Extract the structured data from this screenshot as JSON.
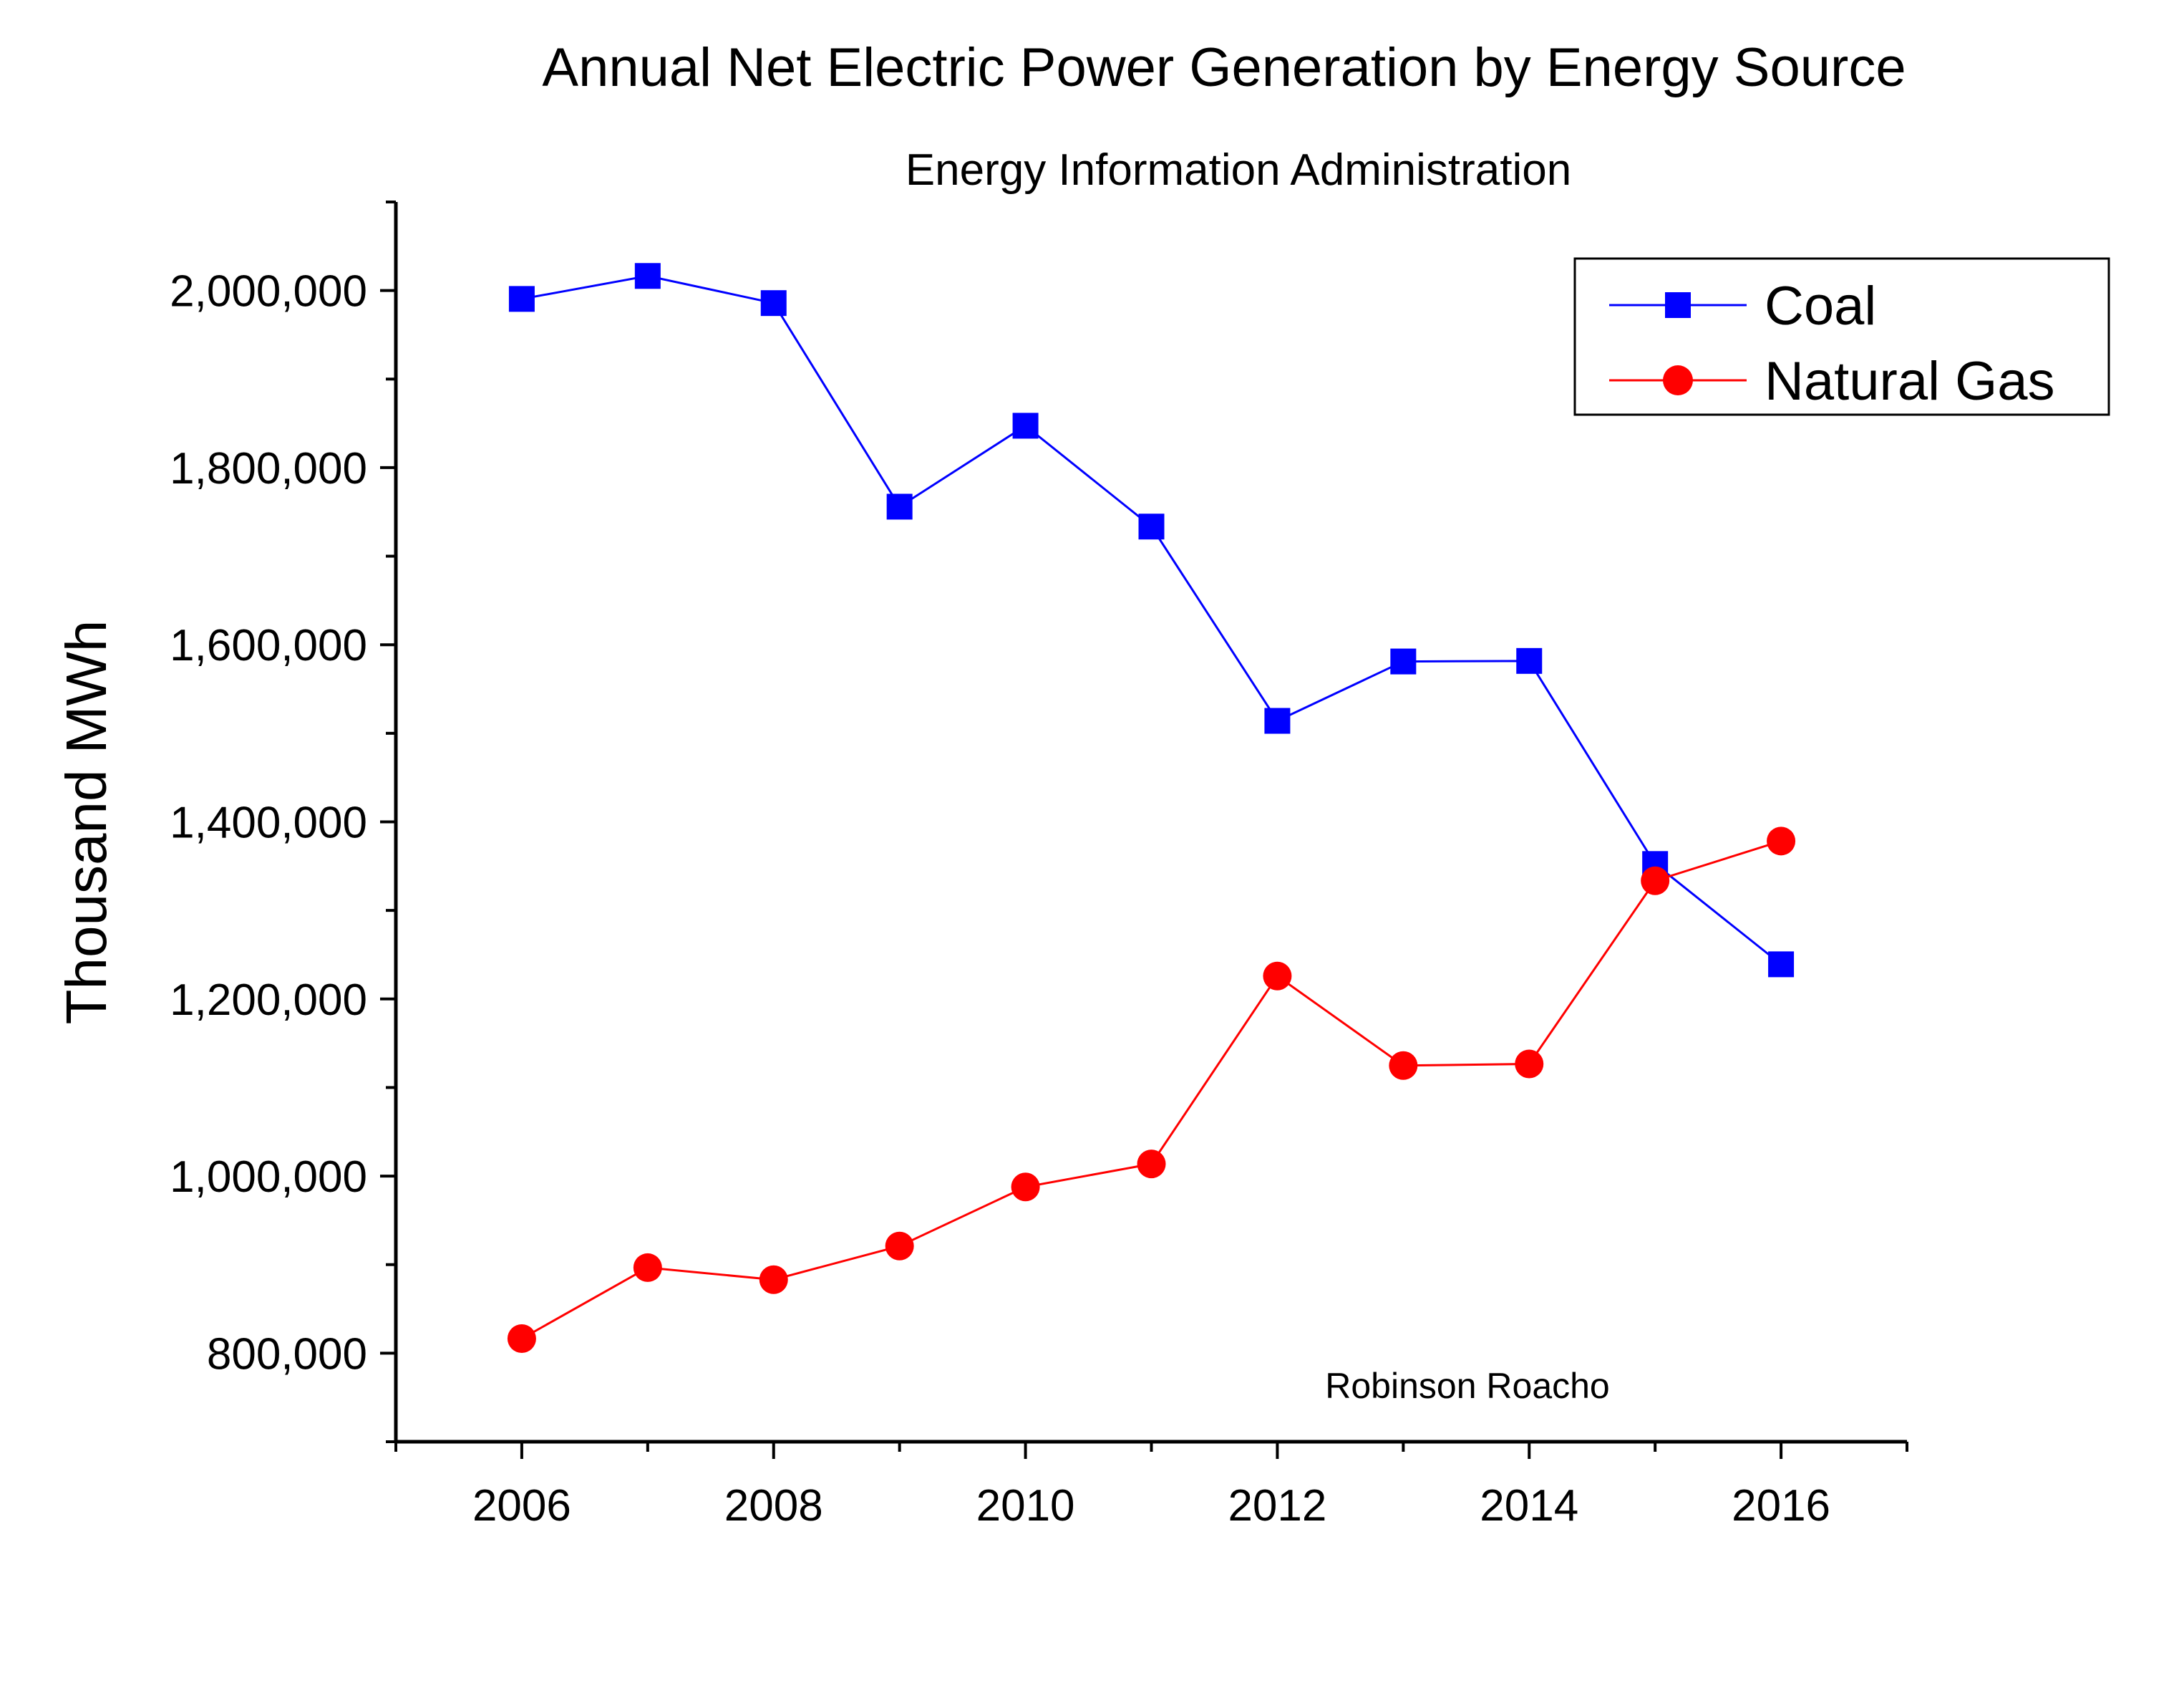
{
  "chart_data": {
    "type": "line",
    "title": "Annual Net Electric Power Generation by Energy Source",
    "subtitle": "Energy Information Administration",
    "xlabel": "",
    "ylabel": "Thousand MWh",
    "x": [
      2006,
      2007,
      2008,
      2009,
      2010,
      2011,
      2012,
      2013,
      2014,
      2015,
      2016
    ],
    "series": [
      {
        "name": "Coal",
        "color": "#0000ff",
        "marker": "square",
        "values": [
          1990511,
          2016456,
          1985801,
          1755904,
          1847290,
          1733430,
          1514043,
          1581115,
          1581710,
          1352398,
          1239149
        ]
      },
      {
        "name": "Natural Gas",
        "color": "#ff0000",
        "marker": "circle",
        "values": [
          816441,
          896590,
          882981,
          920979,
          987697,
          1013689,
          1225894,
          1124836,
          1126609,
          1333482,
          1378307
        ]
      }
    ],
    "xlim": [
      2005,
      2017
    ],
    "ylim": [
      700000,
      2100000
    ],
    "x_ticks": [
      "2006",
      "2008",
      "2010",
      "2012",
      "2014",
      "2016"
    ],
    "y_ticks": [
      "800,000",
      "1,000,000",
      "1,200,000",
      "1,400,000",
      "1,600,000",
      "1,800,000",
      "2,000,000"
    ],
    "legend_position": "top-right",
    "grid": false,
    "annotation": "Robinson Roacho"
  }
}
